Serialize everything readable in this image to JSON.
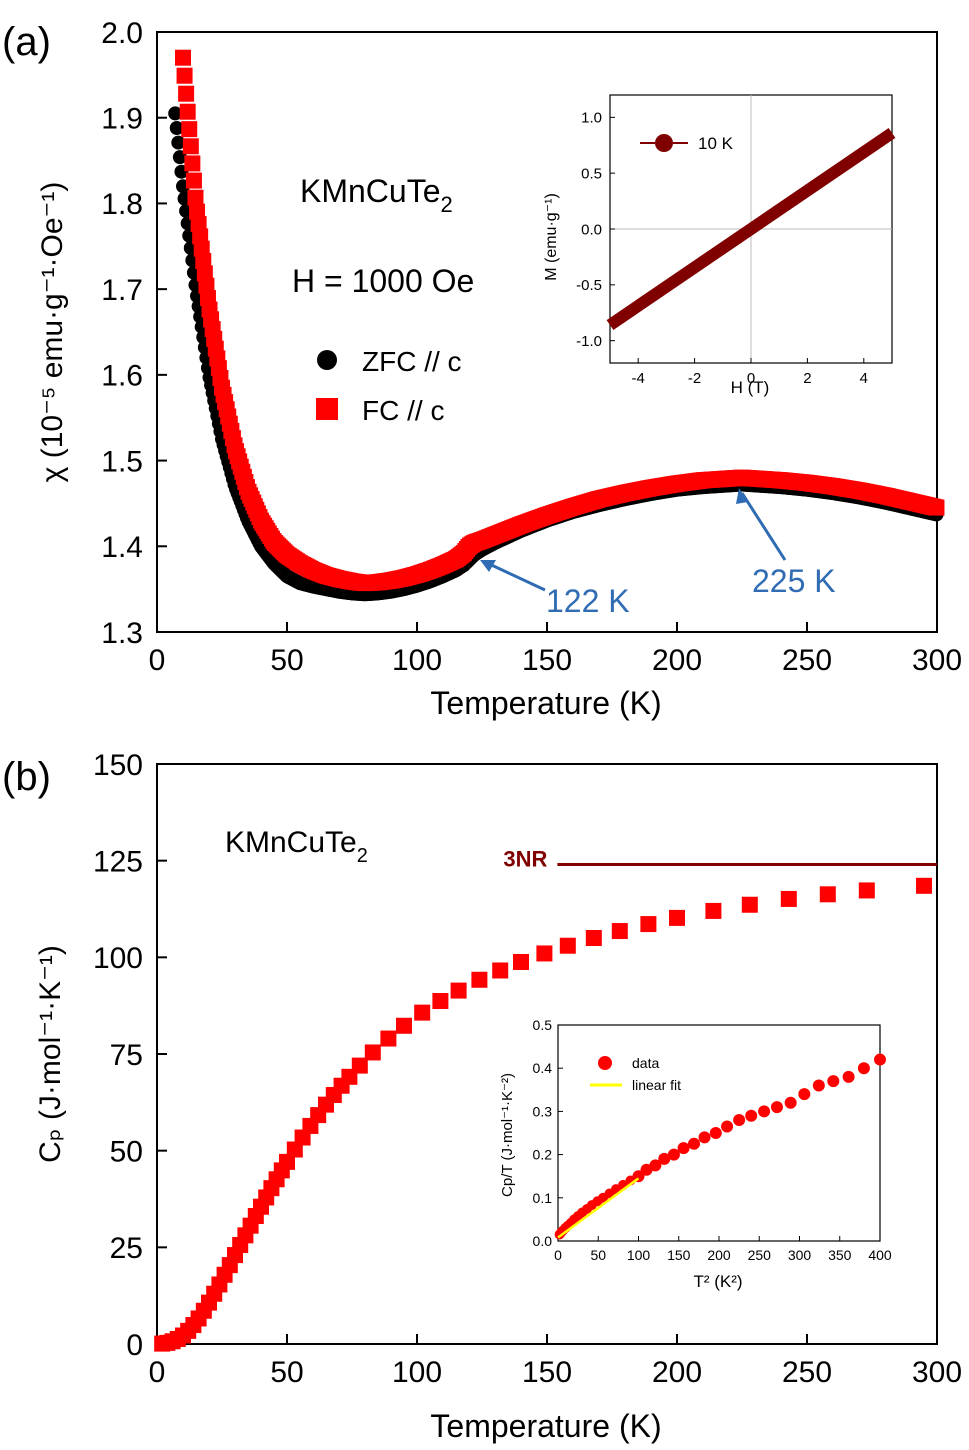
{
  "chart_data": [
    {
      "type": "scatter",
      "panel_label": "(a)",
      "xlabel": "Temperature (K)",
      "ylabel": "χ (10⁻⁵ emu·g⁻¹·Oe⁻¹)",
      "xlim": [
        0,
        300
      ],
      "ylim": [
        1.3,
        2.0
      ],
      "xticks": [
        0,
        50,
        100,
        150,
        200,
        250,
        300
      ],
      "yticks": [
        1.3,
        1.4,
        1.5,
        1.6,
        1.7,
        1.8,
        1.9,
        2.0
      ],
      "xtick_labels": [
        "0",
        "50",
        "100",
        "150",
        "200",
        "250",
        "300"
      ],
      "ytick_labels": [
        "1.3",
        "1.4",
        "1.5",
        "1.6",
        "1.7",
        "1.8",
        "1.9",
        "2.0"
      ],
      "text_sample": "KMnCuTe",
      "text_sample_sub": "2",
      "text_field": "H = 1000 Oe",
      "legend": [
        "ZFC // c",
        "FC // c"
      ],
      "annotations": [
        {
          "text": "122 K",
          "x": 122,
          "y": 1.392
        },
        {
          "text": "225 K",
          "x": 225,
          "y": 1.474
        }
      ],
      "series": [
        {
          "name": "ZFC // c",
          "color": "#000000",
          "x": [
            7,
            10,
            15,
            20,
            25,
            30,
            35,
            40,
            45,
            50,
            55,
            60,
            65,
            70,
            75,
            80,
            85,
            90,
            95,
            100,
            105,
            110,
            115,
            118,
            120,
            122,
            125,
            130,
            140,
            150,
            160,
            170,
            180,
            190,
            200,
            210,
            220,
            225,
            230,
            240,
            250,
            260,
            270,
            280,
            290,
            300
          ],
          "y": [
            1.905,
            1.82,
            1.7,
            1.6,
            1.525,
            1.47,
            1.43,
            1.4,
            1.38,
            1.365,
            1.357,
            1.353,
            1.35,
            1.347,
            1.345,
            1.344,
            1.345,
            1.347,
            1.35,
            1.354,
            1.359,
            1.365,
            1.372,
            1.378,
            1.384,
            1.39,
            1.396,
            1.404,
            1.418,
            1.43,
            1.44,
            1.448,
            1.455,
            1.461,
            1.466,
            1.469,
            1.471,
            1.472,
            1.471,
            1.469,
            1.466,
            1.462,
            1.457,
            1.451,
            1.444,
            1.437
          ]
        },
        {
          "name": "FC // c",
          "color": "#ff0000",
          "x": [
            10,
            12,
            15,
            20,
            25,
            30,
            35,
            40,
            45,
            50,
            55,
            60,
            65,
            70,
            75,
            80,
            85,
            90,
            95,
            100,
            105,
            110,
            115,
            118,
            120,
            122,
            125,
            130,
            140,
            150,
            160,
            170,
            180,
            190,
            200,
            210,
            220,
            225,
            230,
            240,
            250,
            260,
            270,
            280,
            290,
            300
          ],
          "y": [
            1.97,
            1.9,
            1.8,
            1.68,
            1.585,
            1.515,
            1.465,
            1.43,
            1.405,
            1.39,
            1.38,
            1.372,
            1.366,
            1.362,
            1.359,
            1.357,
            1.358,
            1.36,
            1.363,
            1.367,
            1.372,
            1.378,
            1.385,
            1.392,
            1.4,
            1.404,
            1.407,
            1.413,
            1.425,
            1.436,
            1.446,
            1.455,
            1.462,
            1.468,
            1.473,
            1.477,
            1.479,
            1.48,
            1.479,
            1.477,
            1.474,
            1.47,
            1.465,
            1.459,
            1.452,
            1.445
          ]
        }
      ],
      "inset": {
        "type": "line",
        "xlabel": "H (T)",
        "ylabel": "M (emu·g⁻¹)",
        "xlim": [
          -5,
          5
        ],
        "ylim": [
          -1.2,
          1.2
        ],
        "xticks": [
          -4,
          -2,
          0,
          2,
          4
        ],
        "yticks": [
          -1.0,
          -0.5,
          0.0,
          0.5,
          1.0
        ],
        "xtick_labels": [
          "-4",
          "-2",
          "0",
          "2",
          "4"
        ],
        "ytick_labels": [
          "-1.0",
          "-0.5",
          "0.0",
          "0.5",
          "1.0"
        ],
        "legend": [
          "10 K"
        ],
        "series": [
          {
            "name": "10 K",
            "color": "#800000",
            "x": [
              -5,
              5
            ],
            "y": [
              -0.86,
              0.86
            ]
          }
        ]
      }
    },
    {
      "type": "scatter",
      "panel_label": "(b)",
      "xlabel": "Temperature (K)",
      "ylabel": "Cₚ (J·mol⁻¹·K⁻¹)",
      "xlim": [
        0,
        300
      ],
      "ylim": [
        0,
        150
      ],
      "xticks": [
        0,
        50,
        100,
        150,
        200,
        250,
        300
      ],
      "yticks": [
        0,
        25,
        50,
        75,
        100,
        125,
        150
      ],
      "xtick_labels": [
        "0",
        "50",
        "100",
        "150",
        "200",
        "250",
        "300"
      ],
      "ytick_labels": [
        "0",
        "25",
        "50",
        "75",
        "100",
        "125",
        "150"
      ],
      "text_sample": "KMnCuTe",
      "text_sample_sub": "2",
      "reference_line": {
        "label": "3NR",
        "y": 124,
        "x_start": 154,
        "x_end": 300,
        "color": "#800000"
      },
      "series": [
        {
          "name": "Cp",
          "color": "#ff0000",
          "x": [
            2,
            4,
            6,
            8,
            10,
            12,
            14,
            16,
            18,
            20,
            22,
            24,
            26,
            28,
            30,
            32,
            34,
            36,
            38,
            40,
            42,
            44,
            46,
            48,
            50,
            53,
            56,
            59,
            62,
            65,
            68,
            71,
            74,
            78,
            83,
            89,
            95,
            102,
            109,
            116,
            124,
            132,
            140,
            149,
            158,
            168,
            178,
            189,
            200,
            214,
            228,
            243,
            258,
            273,
            295
          ],
          "y": [
            0.1,
            0.3,
            0.7,
            1.3,
            2.2,
            3.4,
            4.9,
            6.6,
            8.6,
            10.7,
            13.0,
            15.4,
            17.9,
            20.4,
            23.0,
            25.6,
            28.1,
            30.6,
            33.1,
            35.5,
            37.9,
            40.3,
            42.6,
            44.9,
            47.1,
            50.3,
            53.4,
            56.4,
            59.2,
            61.9,
            64.4,
            66.8,
            69.1,
            72.0,
            75.4,
            79.0,
            82.3,
            85.7,
            88.7,
            91.4,
            94.2,
            96.6,
            98.8,
            101.0,
            103.0,
            105.0,
            106.8,
            108.6,
            110.2,
            112.0,
            113.6,
            115.1,
            116.3,
            117.3,
            118.5
          ]
        }
      ],
      "inset": {
        "type": "scatter",
        "xlabel": "T² (K²)",
        "ylabel": "Cp/T (J·mol⁻¹·K⁻²)",
        "xlim": [
          0,
          400
        ],
        "ylim": [
          0,
          0.5
        ],
        "xticks": [
          0,
          50,
          100,
          150,
          200,
          250,
          300,
          350,
          400
        ],
        "yticks": [
          0.0,
          0.1,
          0.2,
          0.3,
          0.4,
          0.5
        ],
        "xtick_labels": [
          "0",
          "50",
          "100",
          "150",
          "200",
          "250",
          "300",
          "350",
          "400"
        ],
        "ytick_labels": [
          "0.0",
          "0.1",
          "0.2",
          "0.3",
          "0.4",
          "0.5"
        ],
        "legend": [
          "data",
          "linear fit"
        ],
        "series": [
          {
            "name": "data",
            "color": "#ff0000",
            "x": [
              2,
              4,
              6,
              9,
              12,
              16,
              20,
              25,
              30,
              36,
              42,
              49,
              56,
              64,
              72,
              81,
              90,
              100,
              110,
              121,
              132,
              144,
              156,
              169,
              182,
              196,
              210,
              225,
              240,
              256,
              272,
              289,
              306,
              324,
              342,
              361,
              380,
              400
            ],
            "y": [
              0.015,
              0.02,
              0.024,
              0.03,
              0.035,
              0.042,
              0.05,
              0.058,
              0.066,
              0.074,
              0.083,
              0.092,
              0.1,
              0.11,
              0.12,
              0.13,
              0.14,
              0.15,
              0.165,
              0.175,
              0.19,
              0.2,
              0.215,
              0.225,
              0.24,
              0.25,
              0.265,
              0.28,
              0.29,
              0.3,
              0.31,
              0.32,
              0.34,
              0.36,
              0.37,
              0.38,
              0.4,
              0.42
            ]
          },
          {
            "name": "linear fit",
            "color": "#ffff00",
            "x": [
              0,
              100
            ],
            "y": [
              0.008,
              0.145
            ]
          }
        ]
      }
    }
  ]
}
